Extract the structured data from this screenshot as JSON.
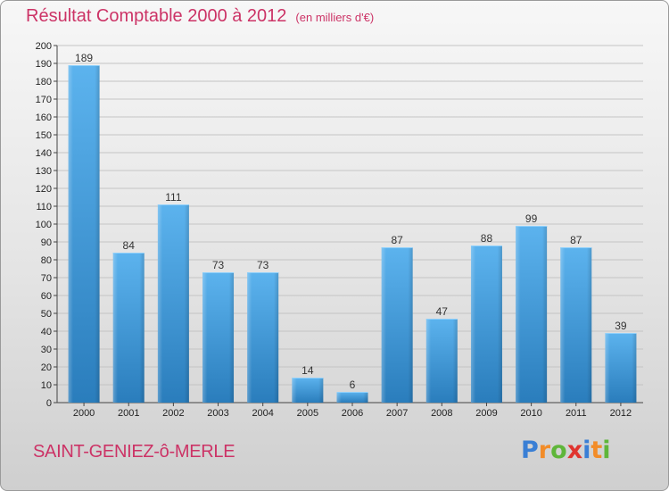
{
  "title": "Résultat Comptable 2000 à 2012",
  "subtitle": "(en milliers d'€)",
  "commune": "SAINT-GENIEZ-ô-MERLE",
  "logo_letters": [
    "P",
    "r",
    "o",
    "x",
    "i",
    "t",
    "i"
  ],
  "logo_colors": [
    "#3a7fd5",
    "#f28c28",
    "#5fb63a",
    "#e0342f",
    "#3a7fd5",
    "#f28c28",
    "#5fb63a"
  ],
  "colors": {
    "title": "#cc3366",
    "bar_light": "#5cb3ee",
    "bar_dark": "#2a7dbc"
  },
  "chart_data": {
    "type": "bar",
    "categories": [
      "2000",
      "2001",
      "2002",
      "2003",
      "2004",
      "2005",
      "2006",
      "2007",
      "2008",
      "2009",
      "2010",
      "2011",
      "2012"
    ],
    "values": [
      189,
      84,
      111,
      73,
      73,
      14,
      6,
      87,
      47,
      88,
      99,
      87,
      39
    ],
    "data_labels": [
      "189",
      "84",
      "111",
      "73",
      "73",
      "14",
      "6",
      "87",
      "47",
      "88",
      "99",
      "87",
      "39"
    ],
    "y_ticks": [
      "0",
      "10",
      "20",
      "30",
      "40",
      "50",
      "60",
      "70",
      "80",
      "90",
      "100",
      "110",
      "120",
      "130",
      "140",
      "150",
      "160",
      "170",
      "180",
      "190",
      "200"
    ],
    "ylim": [
      0,
      200
    ],
    "grid": true
  }
}
